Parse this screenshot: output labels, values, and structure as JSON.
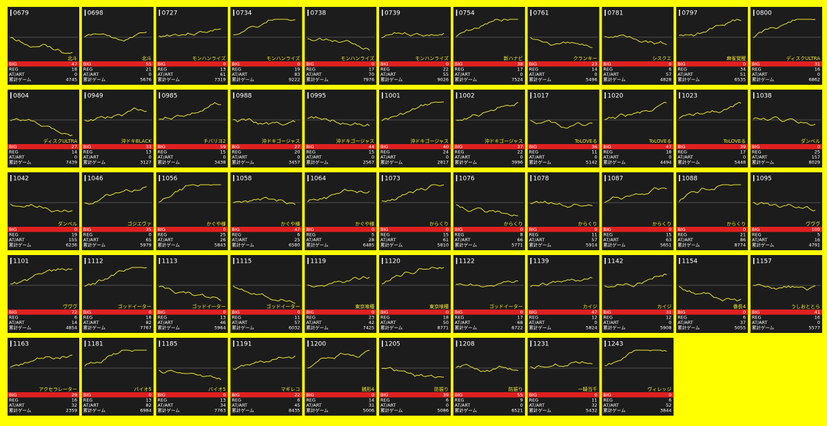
{
  "labels": {
    "big": "BIG",
    "reg": "REG",
    "art": "AT/ART",
    "total": "累計ゲーム"
  },
  "cards": [
    {
      "id": "0679",
      "name": "北斗",
      "big": 47,
      "reg": 18,
      "art": 0,
      "total": 4745
    },
    {
      "id": "0698",
      "name": "北斗",
      "big": 55,
      "reg": 21,
      "art": 0,
      "total": 5676
    },
    {
      "id": "0727",
      "name": "モンハンライズ",
      "big": 0,
      "reg": 13,
      "art": 61,
      "total": 7319
    },
    {
      "id": "0734",
      "name": "モンハンライズ",
      "big": 0,
      "reg": 19,
      "art": 83,
      "total": 9222
    },
    {
      "id": "0738",
      "name": "モンハンライズ",
      "big": 0,
      "reg": 17,
      "art": 70,
      "total": 7976
    },
    {
      "id": "0739",
      "name": "モンハンライズ",
      "big": 0,
      "reg": 22,
      "art": 55,
      "total": 9026
    },
    {
      "id": "0754",
      "name": "新ハナビ",
      "big": 38,
      "reg": 17,
      "art": 0,
      "total": 7524
    },
    {
      "id": "0761",
      "name": "クランキー",
      "big": 23,
      "reg": 14,
      "art": 0,
      "total": 5496
    },
    {
      "id": "0781",
      "name": "シスクエ",
      "big": 0,
      "reg": 6,
      "art": 57,
      "total": 4828
    },
    {
      "id": "0797",
      "name": "麻雀覚醒",
      "big": 0,
      "reg": 34,
      "art": 51,
      "total": 6535
    },
    {
      "id": "0800",
      "name": "ディスクULTRA",
      "big": 31,
      "reg": 16,
      "art": 0,
      "total": 6862
    },
    {
      "id": "0804",
      "name": "ディスクULTRA",
      "big": 27,
      "reg": 14,
      "art": 0,
      "total": 7439
    },
    {
      "id": "0949",
      "name": "沖ドキBLACK",
      "big": 33,
      "reg": 13,
      "art": 0,
      "total": 3127
    },
    {
      "id": "0985",
      "name": "チバリヨ2",
      "big": 59,
      "reg": 15,
      "art": 0,
      "total": 3438
    },
    {
      "id": "0988",
      "name": "沖ドキゴージャス",
      "big": 27,
      "reg": 20,
      "art": 0,
      "total": 3457
    },
    {
      "id": "0995",
      "name": "沖ドキゴージャス",
      "big": 44,
      "reg": 15,
      "art": 0,
      "total": 2567
    },
    {
      "id": "1001",
      "name": "沖ドキゴージャス",
      "big": 40,
      "reg": 24,
      "art": 0,
      "total": 2817
    },
    {
      "id": "1002",
      "name": "沖ドキゴージャス",
      "big": 37,
      "reg": 22,
      "art": 0,
      "total": 3996
    },
    {
      "id": "1017",
      "name": "ToLOVEる",
      "big": 36,
      "reg": 11,
      "art": 0,
      "total": 5142
    },
    {
      "id": "1020",
      "name": "ToLOVEる",
      "big": 47,
      "reg": 18,
      "art": 0,
      "total": 4494
    },
    {
      "id": "1023",
      "name": "ToLOVEる",
      "big": 39,
      "reg": 17,
      "art": 0,
      "total": 5448
    },
    {
      "id": "1038",
      "name": "ダンベル",
      "big": 0,
      "reg": 25,
      "art": 157,
      "total": 8029
    },
    {
      "id": "1042",
      "name": "ダンベル",
      "big": 0,
      "reg": 19,
      "art": 155,
      "total": 6236
    },
    {
      "id": "1046",
      "name": "ゴジエヴァ",
      "big": 35,
      "reg": 0,
      "art": 65,
      "total": 5979
    },
    {
      "id": "1056",
      "name": "かぐや様",
      "big": 0,
      "reg": 25,
      "art": 26,
      "total": 5843
    },
    {
      "id": "1058",
      "name": "かぐや様",
      "big": 47,
      "reg": 6,
      "art": 25,
      "total": 6580
    },
    {
      "id": "1064",
      "name": "かぐや様",
      "big": 0,
      "reg": 5,
      "art": 28,
      "total": 6485
    },
    {
      "id": "1073",
      "name": "からくり",
      "big": 0,
      "reg": 15,
      "art": 61,
      "total": 5810
    },
    {
      "id": "1076",
      "name": "からくり",
      "big": 0,
      "reg": 8,
      "art": 66,
      "total": 5771
    },
    {
      "id": "1078",
      "name": "からくり",
      "big": 0,
      "reg": 11,
      "art": 57,
      "total": 5914
    },
    {
      "id": "1087",
      "name": "からくり",
      "big": 0,
      "reg": 15,
      "art": 63,
      "total": 5651
    },
    {
      "id": "1088",
      "name": "からくり",
      "big": 0,
      "reg": 21,
      "art": 86,
      "total": 8774
    },
    {
      "id": "1095",
      "name": "ヴヴヴ",
      "big": 109,
      "reg": 5,
      "art": 16,
      "total": 4791
    },
    {
      "id": "1101",
      "name": "ヴヴヴ",
      "big": 72,
      "reg": 6,
      "art": 14,
      "total": 4854
    },
    {
      "id": "1112",
      "name": "ゴッドイーター",
      "big": 0,
      "reg": 18,
      "art": 82,
      "total": 7767
    },
    {
      "id": "1113",
      "name": "ゴッドイーター",
      "big": 0,
      "reg": 13,
      "art": 46,
      "total": 5964
    },
    {
      "id": "1115",
      "name": "ゴッドイーター",
      "big": 0,
      "reg": 11,
      "art": 57,
      "total": 6032
    },
    {
      "id": "1119",
      "name": "東京喰種",
      "big": 0,
      "reg": 23,
      "art": 42,
      "total": 7425
    },
    {
      "id": "1120",
      "name": "東京喰種",
      "big": 0,
      "reg": 18,
      "art": 50,
      "total": 8771
    },
    {
      "id": "1122",
      "name": "ゴッドイーター",
      "big": 0,
      "reg": 17,
      "art": 68,
      "total": 6722
    },
    {
      "id": "1139",
      "name": "カイジ",
      "big": 47,
      "reg": 12,
      "art": 0,
      "total": 5824
    },
    {
      "id": "1142",
      "name": "カイジ",
      "big": 31,
      "reg": 12,
      "art": 0,
      "total": 5908
    },
    {
      "id": "1154",
      "name": "番長4",
      "big": 0,
      "reg": 6,
      "art": 37,
      "total": 5055
    },
    {
      "id": "1157",
      "name": "うしおととら",
      "big": 41,
      "reg": 16,
      "art": 0,
      "total": 5577
    },
    {
      "id": "1163",
      "name": "アクセラレーター",
      "big": 29,
      "reg": 16,
      "art": 32,
      "total": 2359
    },
    {
      "id": "1181",
      "name": "バイオ5",
      "big": 0,
      "reg": 13,
      "art": 82,
      "total": 6984
    },
    {
      "id": "1185",
      "name": "バイオ5",
      "big": 0,
      "reg": 13,
      "art": 34,
      "total": 7763
    },
    {
      "id": "1191",
      "name": "マギレコ",
      "big": 22,
      "reg": 6,
      "art": 45,
      "total": 8435
    },
    {
      "id": "1200",
      "name": "銭形4",
      "big": 0,
      "reg": 14,
      "art": 31,
      "total": 5006
    },
    {
      "id": "1205",
      "name": "防振り",
      "big": 39,
      "reg": 6,
      "art": 0,
      "total": 5086
    },
    {
      "id": "1208",
      "name": "防振り",
      "big": 55,
      "reg": 9,
      "art": 0,
      "total": 6521
    },
    {
      "id": "1231",
      "name": "一騎当千",
      "big": 0,
      "reg": 11,
      "art": 32,
      "total": 5432
    },
    {
      "id": "1243",
      "name": "ヴィレッジ",
      "big": 0,
      "reg": 6,
      "art": 52,
      "total": 3844
    }
  ]
}
